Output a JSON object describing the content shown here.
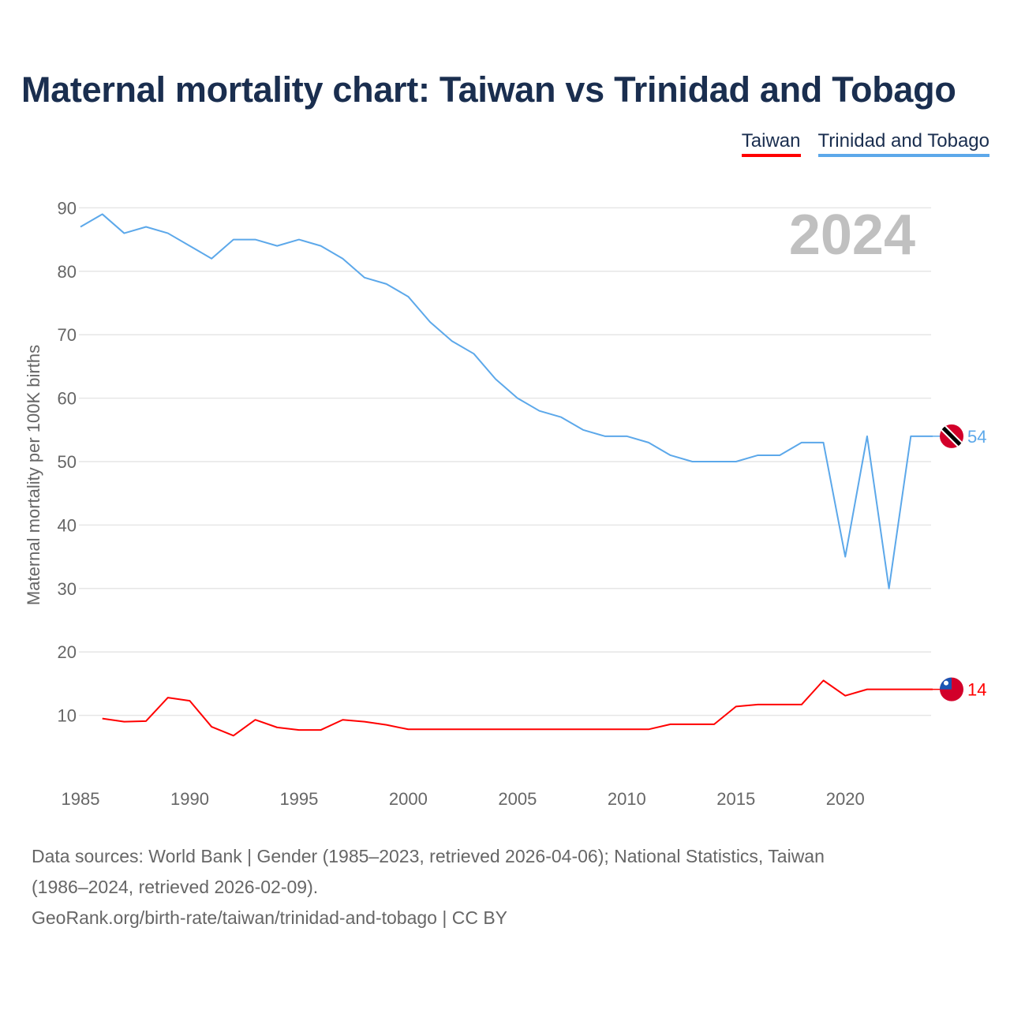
{
  "title": "Maternal mortality chart: Taiwan vs Trinidad and Tobago",
  "footer": {
    "line1": "Data sources: World Bank | Gender (1985–2023, retrieved 2026-04-06); National Statistics, Taiwan",
    "line2": "(1986–2024, retrieved 2026-02-09).",
    "line3": "GeoRank.org/birth-rate/taiwan/trinidad-and-tobago | CC BY"
  },
  "chart_data": {
    "type": "line",
    "title": "Maternal mortality chart: Taiwan vs Trinidad and Tobago",
    "ylabel": "Maternal mortality per 100K births",
    "xlabel": "",
    "year_label": "2024",
    "xlim": [
      1985,
      2024
    ],
    "ylim": [
      0,
      90
    ],
    "xticks": [
      1985,
      1990,
      1995,
      2000,
      2005,
      2010,
      2015,
      2020
    ],
    "yticks": [
      10,
      20,
      30,
      40,
      50,
      60,
      70,
      80,
      90
    ],
    "grid": true,
    "legend_position": "top-right",
    "series": [
      {
        "name": "Taiwan",
        "color": "#ff0000",
        "flag": "taiwan-flag",
        "end_label": "14",
        "x": [
          1986,
          1987,
          1988,
          1989,
          1990,
          1991,
          1992,
          1993,
          1994,
          1995,
          1996,
          1997,
          1998,
          1999,
          2000,
          2001,
          2002,
          2003,
          2004,
          2005,
          2006,
          2007,
          2008,
          2009,
          2010,
          2011,
          2012,
          2013,
          2014,
          2015,
          2016,
          2017,
          2018,
          2019,
          2020,
          2021,
          2022,
          2023,
          2024
        ],
        "values": [
          9.5,
          9.0,
          9.1,
          12.8,
          12.3,
          8.2,
          6.8,
          9.3,
          8.1,
          7.7,
          7.7,
          9.3,
          9.0,
          8.5,
          7.8,
          7.8,
          7.8,
          7.8,
          7.8,
          7.8,
          7.8,
          7.8,
          7.8,
          7.8,
          7.8,
          7.8,
          8.6,
          8.6,
          8.6,
          11.4,
          11.7,
          11.7,
          11.7,
          15.5,
          13.1,
          14.1,
          14.1,
          14.1,
          14.1
        ]
      },
      {
        "name": "Trinidad and Tobago",
        "color": "#5ca8ea",
        "flag": "trinidad-and-tobago-flag",
        "end_label": "54",
        "x": [
          1985,
          1986,
          1987,
          1988,
          1989,
          1990,
          1991,
          1992,
          1993,
          1994,
          1995,
          1996,
          1997,
          1998,
          1999,
          2000,
          2001,
          2002,
          2003,
          2004,
          2005,
          2006,
          2007,
          2008,
          2009,
          2010,
          2011,
          2012,
          2013,
          2014,
          2015,
          2016,
          2017,
          2018,
          2019,
          2020,
          2021,
          2022,
          2023,
          2024
        ],
        "values": [
          87,
          89,
          86,
          87,
          86,
          84,
          82,
          85,
          85,
          84,
          85,
          84,
          82,
          79,
          78,
          76,
          72,
          69,
          67,
          63,
          60,
          58,
          57,
          55,
          54,
          54,
          53,
          51,
          50,
          50,
          50,
          51,
          51,
          53,
          53,
          35,
          54,
          30,
          54,
          54
        ]
      }
    ]
  }
}
